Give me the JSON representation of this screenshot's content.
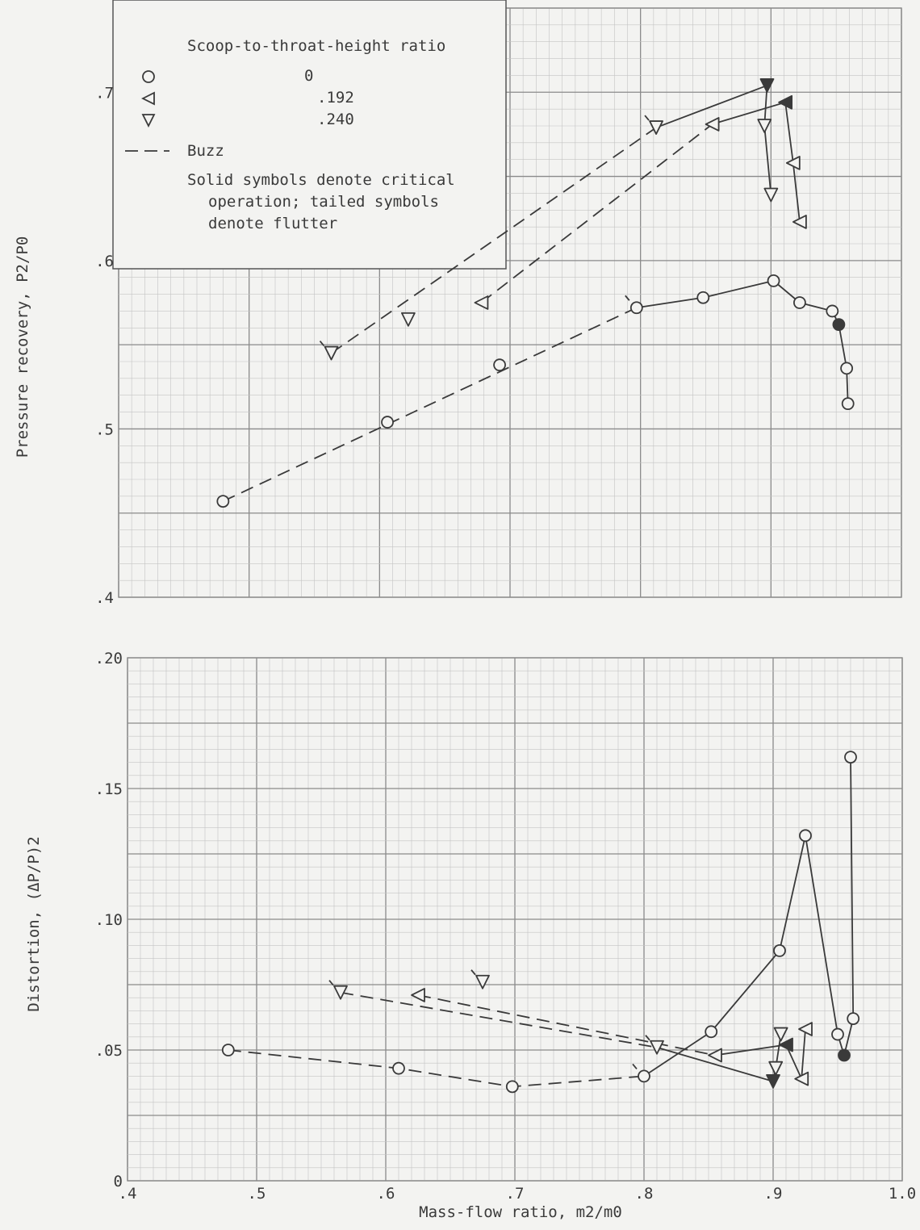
{
  "colors": {
    "background": "#f3f3f1",
    "grid_major": "#8a8a8a",
    "grid_minor": "#c4c4c4",
    "ink": "#3a3a3a"
  },
  "legend": {
    "title": "Scoop-to-throat-height ratio",
    "entries": [
      {
        "symbol": "circle",
        "label": "0"
      },
      {
        "symbol": "triangle-left",
        "label": ".192"
      },
      {
        "symbol": "triangle-down",
        "label": ".240"
      }
    ],
    "line_entry": {
      "style": "dashed",
      "label": "Buzz"
    },
    "note_lines": [
      "Solid symbols denote critical",
      "operation; tailed symbols",
      "denote flutter"
    ]
  },
  "chart_data": [
    {
      "type": "scatter",
      "name": "pressure-recovery",
      "ylabel": "Pressure recovery, P2/P0",
      "xlim": [
        0.4,
        1.0
      ],
      "ylim": [
        0.4,
        0.75
      ],
      "yticks": [
        {
          "v": 0.4,
          "label": ".4"
        },
        {
          "v": 0.5,
          "label": ".5"
        },
        {
          "v": 0.6,
          "label": ".6"
        },
        {
          "v": 0.7,
          "label": ".7"
        }
      ],
      "grid": true,
      "legend_position": "top-left",
      "series": [
        {
          "symbol": "circle",
          "label": "0",
          "points": [
            {
              "x": 0.48,
              "y": 0.457
            },
            {
              "x": 0.606,
              "y": 0.504
            },
            {
              "x": 0.692,
              "y": 0.538
            },
            {
              "x": 0.797,
              "y": 0.572,
              "tail": true
            },
            {
              "x": 0.848,
              "y": 0.578
            },
            {
              "x": 0.902,
              "y": 0.588
            },
            {
              "x": 0.922,
              "y": 0.575
            },
            {
              "x": 0.947,
              "y": 0.57
            },
            {
              "x": 0.952,
              "y": 0.562,
              "solid": true
            },
            {
              "x": 0.958,
              "y": 0.536
            },
            {
              "x": 0.959,
              "y": 0.515
            }
          ],
          "dashed_path": [
            [
              0.48,
              0.457
            ],
            [
              0.797,
              0.572
            ]
          ],
          "solid_path": [
            [
              0.797,
              0.572
            ],
            [
              0.848,
              0.578
            ],
            [
              0.902,
              0.588
            ],
            [
              0.922,
              0.575
            ],
            [
              0.947,
              0.57
            ],
            [
              0.952,
              0.562
            ],
            [
              0.958,
              0.536
            ],
            [
              0.959,
              0.515
            ]
          ]
        },
        {
          "symbol": "triangle-left",
          "label": ".192",
          "points": [
            {
              "x": 0.678,
              "y": 0.575
            },
            {
              "x": 0.855,
              "y": 0.681
            },
            {
              "x": 0.911,
              "y": 0.694,
              "solid": true
            },
            {
              "x": 0.917,
              "y": 0.658
            },
            {
              "x": 0.922,
              "y": 0.623
            }
          ],
          "dashed_path": [
            [
              0.678,
              0.575
            ],
            [
              0.855,
              0.681
            ]
          ],
          "solid_path": [
            [
              0.855,
              0.681
            ],
            [
              0.911,
              0.694
            ],
            [
              0.917,
              0.658
            ],
            [
              0.922,
              0.623
            ]
          ]
        },
        {
          "symbol": "triangle-down",
          "label": ".240",
          "points": [
            {
              "x": 0.563,
              "y": 0.545,
              "tail": true
            },
            {
              "x": 0.622,
              "y": 0.565
            },
            {
              "x": 0.812,
              "y": 0.679,
              "tail": true
            },
            {
              "x": 0.897,
              "y": 0.704,
              "solid": true
            },
            {
              "x": 0.895,
              "y": 0.68
            },
            {
              "x": 0.9,
              "y": 0.639
            }
          ],
          "dashed_path": [
            [
              0.563,
              0.545
            ],
            [
              0.812,
              0.679
            ]
          ],
          "solid_path": [
            [
              0.812,
              0.679
            ],
            [
              0.897,
              0.704
            ],
            [
              0.895,
              0.68
            ],
            [
              0.9,
              0.639
            ]
          ]
        }
      ]
    },
    {
      "type": "scatter",
      "name": "distortion",
      "ylabel": "Distortion, (ΔP/P)2",
      "xlabel": "Mass-flow ratio, m2/m0",
      "xlim": [
        0.4,
        1.0
      ],
      "ylim": [
        0,
        0.2
      ],
      "xticks": [
        {
          "v": 0.4,
          "label": ".4"
        },
        {
          "v": 0.5,
          "label": ".5"
        },
        {
          "v": 0.6,
          "label": ".6"
        },
        {
          "v": 0.7,
          "label": ".7"
        },
        {
          "v": 0.8,
          "label": ".8"
        },
        {
          "v": 0.9,
          "label": ".9"
        },
        {
          "v": 1.0,
          "label": "1.0"
        }
      ],
      "yticks": [
        {
          "v": 0,
          "label": "0"
        },
        {
          "v": 0.05,
          "label": ".05"
        },
        {
          "v": 0.1,
          "label": ".10"
        },
        {
          "v": 0.15,
          "label": ".15"
        },
        {
          "v": 0.2,
          "label": ".20"
        }
      ],
      "grid": true,
      "series": [
        {
          "symbol": "circle",
          "label": "0",
          "points": [
            {
              "x": 0.478,
              "y": 0.05
            },
            {
              "x": 0.61,
              "y": 0.043
            },
            {
              "x": 0.698,
              "y": 0.036
            },
            {
              "x": 0.8,
              "y": 0.04,
              "tail": true
            },
            {
              "x": 0.852,
              "y": 0.057
            },
            {
              "x": 0.905,
              "y": 0.088
            },
            {
              "x": 0.925,
              "y": 0.132
            },
            {
              "x": 0.95,
              "y": 0.056
            },
            {
              "x": 0.955,
              "y": 0.048,
              "solid": true
            },
            {
              "x": 0.962,
              "y": 0.062
            },
            {
              "x": 0.96,
              "y": 0.162
            }
          ],
          "dashed_path": [
            [
              0.478,
              0.05
            ],
            [
              0.61,
              0.043
            ],
            [
              0.698,
              0.036
            ],
            [
              0.8,
              0.04
            ]
          ],
          "solid_path": [
            [
              0.8,
              0.04
            ],
            [
              0.852,
              0.057
            ],
            [
              0.905,
              0.088
            ],
            [
              0.925,
              0.132
            ],
            [
              0.95,
              0.056
            ],
            [
              0.955,
              0.048
            ],
            [
              0.962,
              0.062
            ],
            [
              0.96,
              0.162
            ]
          ]
        },
        {
          "symbol": "triangle-left",
          "label": ".192",
          "points": [
            {
              "x": 0.625,
              "y": 0.071
            },
            {
              "x": 0.855,
              "y": 0.048
            },
            {
              "x": 0.91,
              "y": 0.052,
              "solid": true
            },
            {
              "x": 0.922,
              "y": 0.039
            },
            {
              "x": 0.925,
              "y": 0.058
            }
          ],
          "dashed_path": [
            [
              0.625,
              0.071
            ],
            [
              0.855,
              0.048
            ]
          ],
          "solid_path": [
            [
              0.855,
              0.048
            ],
            [
              0.91,
              0.052
            ],
            [
              0.922,
              0.039
            ],
            [
              0.925,
              0.058
            ]
          ]
        },
        {
          "symbol": "triangle-down",
          "label": ".240",
          "points": [
            {
              "x": 0.565,
              "y": 0.072,
              "tail": true
            },
            {
              "x": 0.675,
              "y": 0.076,
              "tail": true
            },
            {
              "x": 0.81,
              "y": 0.051,
              "tail": true
            },
            {
              "x": 0.9,
              "y": 0.038,
              "solid": true
            },
            {
              "x": 0.902,
              "y": 0.043
            },
            {
              "x": 0.906,
              "y": 0.056
            }
          ],
          "dashed_path": [
            [
              0.565,
              0.072
            ],
            [
              0.81,
              0.051
            ]
          ],
          "solid_path": [
            [
              0.81,
              0.051
            ],
            [
              0.9,
              0.038
            ],
            [
              0.902,
              0.043
            ],
            [
              0.906,
              0.056
            ]
          ]
        }
      ]
    }
  ]
}
